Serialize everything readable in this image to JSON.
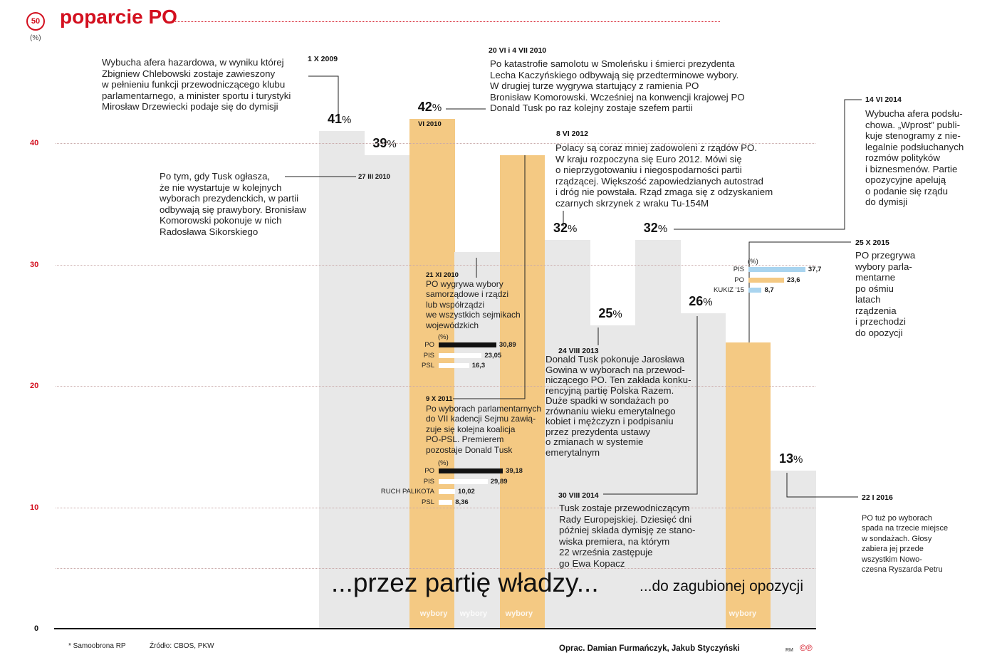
{
  "header": {
    "title": "poparcie PO",
    "badge": "50",
    "unit": "(%)"
  },
  "chart_data": {
    "type": "bar",
    "title": "poparcie PO",
    "ylabel": "(%)",
    "ylim": [
      0,
      50
    ],
    "yticks": [
      "0",
      "10",
      "20",
      "30",
      "40"
    ],
    "values": [
      41,
      39,
      42,
      31,
      39,
      32,
      25,
      32,
      26,
      23.6,
      13
    ],
    "elections": [
      false,
      false,
      true,
      false,
      true,
      false,
      false,
      false,
      false,
      true,
      false
    ],
    "value_labels": [
      "41",
      "39",
      "42",
      "",
      "",
      "32",
      "25",
      "32",
      "26",
      "",
      "13"
    ],
    "colors": {
      "poll": "#e8e8e8",
      "election": "#f4c983",
      "accent": "#d3101f"
    }
  },
  "election_label": "wybory",
  "annotations": {
    "a1": {
      "date": "1 X 2009",
      "text": "Wybucha afera hazardowa, w wyniku której\nZbigniew Chlebowski zostaje zawieszony\nw pełnieniu funkcji przewodniczącego klubu\nparlamentarnego, a minister sportu i turystyki\nMirosław Drzewiecki podaje się do dymisji"
    },
    "a2": {
      "date": "20 VI i 4 VII 2010",
      "text": "Po katastrofie samolotu w Smoleńsku i śmierci prezydenta\nLecha Kaczyńskiego odbywają się przedterminowe wybory.\nW drugiej turze wygrywa startujący z ramienia PO\nBronisław Komorowski. Wcześniej na konwencji krajowej PO\nDonald Tusk po raz kolejny zostaje szefem partii",
      "bar_date": "VI 2010"
    },
    "a3": {
      "date": "27 III 2010",
      "text": "Po tym, gdy Tusk ogłasza,\nże nie wystartuje w kolejnych\nwyborach prezydenckich, w partii\nodbywają się prawybory. Bronisław\nKomorowski pokonuje w nich\nRadosława Sikorskiego"
    },
    "a4": {
      "date": "8 VI 2012",
      "text": "Polacy są coraz mniej zadowoleni z rządów PO.\nW kraju rozpoczyna się Euro 2012. Mówi się\no nieprzygotowaniu i niegospodarności partii\nrządzącej. Większość zapowiedzianych autostrad\ni dróg nie powstała. Rząd zmaga się z odzyskaniem\nczarnych skrzynek z wraku Tu-154M"
    },
    "a5": {
      "date": "14 VI 2014",
      "text": "Wybucha afera podsłu-\nchowa. „Wprost” publi-\nkuje stenogramy z nie-\nlegalnie podsłuchanych\nrozmów polityków\ni biznesmenów. Partie\nopozycyjne apelują\no podanie się rządu\ndo dymisji"
    },
    "a6": {
      "date": "25 X 2015",
      "text": "PO przegrywa\nwybory parla-\nmentarne\npo ośmiu\nlatach\nrządzenia\ni przechodzi\ndo opozycji"
    },
    "a7": {
      "date": "21 XI 2010",
      "text": "PO wygrywa wybory\nsamorządowe i rządzi\nlub współrządzi\nwe wszystkich sejmikach\nwojewódzkich"
    },
    "a8": {
      "date": "9 X 2011",
      "text": "Po wyborach parlamentarnych\ndo VII kadencji Sejmu zawią-\nzuje się kolejna koalicja\nPO-PSL. Premierem\npozostaje Donald Tusk"
    },
    "a9": {
      "date": "24 VIII 2013",
      "text": "Donald Tusk pokonuje Jarosława\nGowina w wyborach na przewod-\nniczącego PO. Ten zakłada konku-\nrencyjną partię Polska Razem.\nDuże spadki w sondażach po\nzrównaniu wieku emerytalnego\nkobiet i mężczyzn i podpisaniu\nprzez prezydenta ustawy\no zmianach w systemie\nemerytalnym"
    },
    "a10": {
      "date": "30 VIII 2014",
      "text": "Tusk zostaje przewodniczącym\nRady Europejskiej. Dziesięć dni\npóźniej składa dymisję ze stano-\nwiska premiera, na którym\n22 września zastępuje\ngo Ewa Kopacz"
    },
    "a11": {
      "date": "22 I 2016",
      "text": "PO tuż po wyborach\nspada na trzecie miejsce\nw sondażach. Głosy\nzabiera jej przede\nwszystkim Nowo-\nczesna Ryszarda Petru"
    }
  },
  "mini_charts": [
    {
      "unit": "(%)",
      "rows": [
        {
          "label": "PO",
          "value": 30.89,
          "text": "30,89",
          "color": "#111111"
        },
        {
          "label": "PIS",
          "value": 23.05,
          "text": "23,05",
          "color": "#ffffff"
        },
        {
          "label": "PSL",
          "value": 16.3,
          "text": "16,3",
          "color": "#ffffff"
        }
      ]
    },
    {
      "unit": "(%)",
      "rows": [
        {
          "label": "PO",
          "value": 39.18,
          "text": "39,18",
          "color": "#111111"
        },
        {
          "label": "PIS",
          "value": 29.89,
          "text": "29,89",
          "color": "#ffffff"
        },
        {
          "label": "RUCH PALIKOTA",
          "value": 10.02,
          "text": "10,02",
          "color": "#ffffff"
        },
        {
          "label": "PSL",
          "value": 8.36,
          "text": "8,36",
          "color": "#ffffff"
        }
      ]
    },
    {
      "unit": "(%)",
      "rows": [
        {
          "label": "PIS",
          "value": 37.7,
          "text": "37,7",
          "color": "#a9d4ef"
        },
        {
          "label": "PO",
          "value": 23.6,
          "text": "23,6",
          "color": "#f4c983"
        },
        {
          "label": "KUKIZ '15",
          "value": 8.7,
          "text": "8,7",
          "color": "#a9d4ef"
        }
      ]
    }
  ],
  "headline_left": "...przez partię władzy...",
  "headline_right": "...do zagubionej opozycji",
  "footer": {
    "note": "* Samoobrona RP",
    "source": "Źródło: CBOS, PKW",
    "author": "Oprac. Damian Furmańczyk, Jakub Styczyński",
    "initials": "RM",
    "logo": "©℗"
  }
}
